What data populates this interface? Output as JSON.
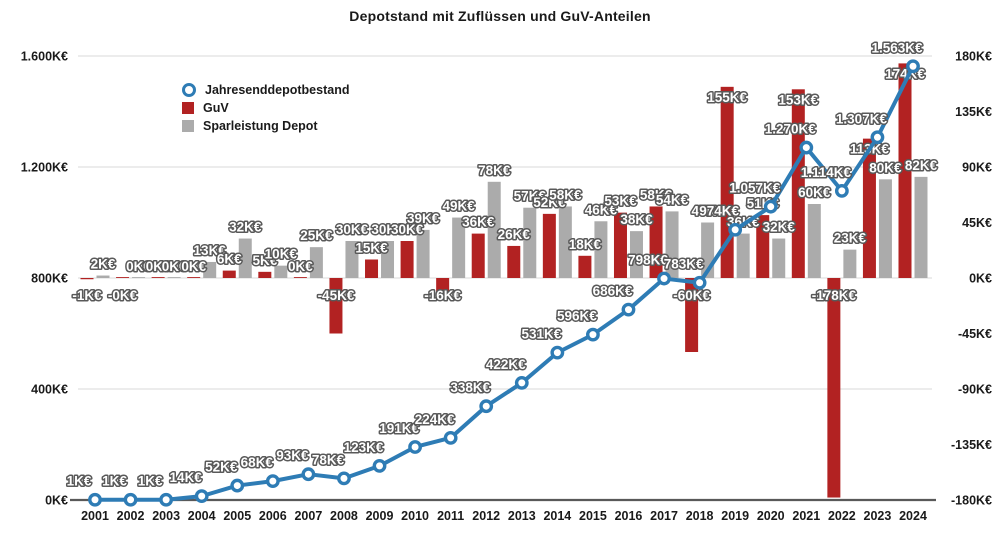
{
  "title": "Depotstand mit Zuflüssen und GuV-Anteilen",
  "legend": [
    {
      "label": "Jahresenddepotbestand",
      "marker": "circle-outline",
      "color": "#2e7cb5"
    },
    {
      "label": "GuV",
      "marker": "square",
      "color": "#b22222"
    },
    {
      "label": "Sparleistung Depot",
      "marker": "square",
      "color": "#ababab"
    }
  ],
  "axes": {
    "left_ticks": [
      "1.600K€",
      "1.200K€",
      "800K€",
      "400K€",
      "0K€"
    ],
    "left_range": [
      0,
      1600
    ],
    "right_ticks": [
      "180K€",
      "135K€",
      "90K€",
      "45K€",
      "0K€",
      "-45K€",
      "-90K€",
      "-135K€",
      "-180K€"
    ],
    "right_range": [
      -180,
      180
    ],
    "grid": "horizontal-only"
  },
  "colors": {
    "line": "#2e7cb5",
    "marker_fill": "#ffffff",
    "guv_bar": "#b22222",
    "spar_bar": "#ababab",
    "grid": "#d9d9d9",
    "axis_line": "#595959",
    "label_fill": "#ffffff",
    "label_outline": "#595959",
    "tick_color": "#1a1a1a"
  },
  "chart_data": {
    "type": "combo: line (left axis) + grouped bars (right axis)",
    "title": "Depotstand mit Zuflüssen und GuV-Anteilen",
    "unit": "K€",
    "x": [
      "2001",
      "2002",
      "2003",
      "2004",
      "2005",
      "2006",
      "2007",
      "2008",
      "2009",
      "2010",
      "2011",
      "2012",
      "2013",
      "2014",
      "2015",
      "2016",
      "2017",
      "2018",
      "2019",
      "2020",
      "2021",
      "2022",
      "2023",
      "2024"
    ],
    "series": [
      {
        "name": "Jahresenddepotbestand",
        "type": "line",
        "axis": "left",
        "values": [
          1,
          1,
          1,
          14,
          52,
          68,
          93,
          78,
          123,
          191,
          224,
          338,
          422,
          531,
          596,
          686,
          798,
          783,
          974,
          1057,
          1270,
          1114,
          1307,
          1563
        ],
        "labels": [
          "1K€",
          "1K€",
          "1K€",
          "14K€",
          "52K€",
          "68K€",
          "93K€",
          "78K€",
          "123K€",
          "191K€",
          "224K€",
          "338K€",
          "422K€",
          "531K€",
          "596K€",
          "686K€",
          "798K€",
          "783K€",
          "974K€",
          "1.057K€",
          "1.270K€",
          "1.114K€",
          "1.307K€",
          "1.563K€"
        ]
      },
      {
        "name": "GuV",
        "type": "bar",
        "axis": "right",
        "values": [
          -1,
          0,
          0,
          0,
          6,
          5,
          0,
          -45,
          15,
          30,
          -16,
          36,
          26,
          52,
          18,
          53,
          58,
          -60,
          155,
          51,
          153,
          -178,
          113,
          174
        ],
        "labels": [
          "-1K€",
          "-0K€",
          "0K€",
          "0K€",
          "6K€",
          "5K€",
          "0K€",
          "-45K€",
          "15K€",
          "30K€",
          "-16K€",
          "36K€",
          "26K€",
          "52K€",
          "18K€",
          "53K€",
          "58K€",
          "-60K€",
          "155K€",
          "51K€",
          "153K€",
          "-178K€",
          "113K€",
          "174K€"
        ]
      },
      {
        "name": "Sparleistung Depot",
        "type": "bar",
        "axis": "right",
        "values": [
          2,
          0,
          0,
          13,
          32,
          10,
          25,
          30,
          30,
          39,
          49,
          78,
          57,
          58,
          46,
          38,
          54,
          45,
          36,
          32,
          60,
          23,
          80,
          82
        ],
        "labels": [
          "2K€",
          "0K€",
          "0K€",
          "13K€",
          "32K€",
          "10K€",
          "25K€",
          "30K€",
          "30K€",
          "39K€",
          "49K€",
          "78K€",
          "57K€",
          "58K€",
          "46K€",
          "38K€",
          "54K€",
          "45K€",
          "36K€",
          "32K€",
          "60K€",
          "23K€",
          "80K€",
          "82K€"
        ]
      }
    ],
    "legend_position": "inside top-left"
  }
}
